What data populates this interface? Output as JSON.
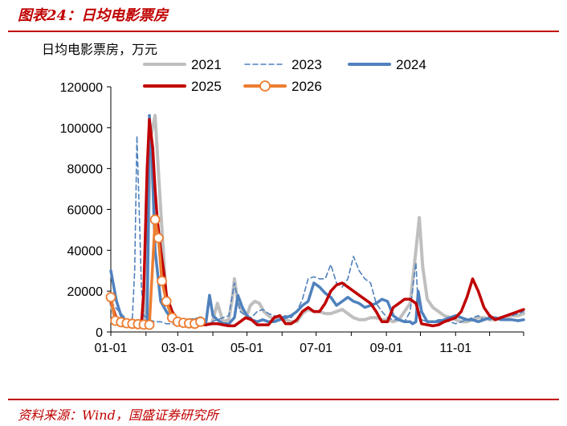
{
  "figure": {
    "title": "图表24：日均电影票房",
    "source": "资料来源：Wind，国盛证券研究所"
  },
  "chart_data": {
    "type": "line",
    "ylabel": "日均电影票房，万元",
    "ylim": [
      0,
      120000
    ],
    "yticks": [
      0,
      20000,
      40000,
      60000,
      80000,
      100000,
      120000
    ],
    "xticks": [
      "01-01",
      "03-01",
      "05-01",
      "07-01",
      "09-01",
      "11-01"
    ],
    "grid": false,
    "legend_position": "top",
    "series": [
      {
        "name": "2021",
        "color": "#bfbfbf",
        "style": "solid",
        "x": [
          1,
          4,
          8,
          12,
          15,
          20,
          25,
          28,
          30,
          33,
          36,
          40,
          45,
          50,
          55,
          60,
          65,
          70,
          75,
          80,
          85,
          90,
          95,
          100,
          105,
          108,
          110,
          113,
          117,
          121,
          124,
          128,
          132,
          136,
          140,
          145,
          150,
          155,
          160,
          165,
          170,
          175,
          180,
          185,
          190,
          195,
          200,
          205,
          210,
          215,
          220,
          225,
          230,
          235,
          240,
          245,
          250,
          255,
          260,
          265,
          270,
          273,
          276,
          280,
          285,
          290,
          295,
          300,
          305,
          310,
          315,
          320,
          325,
          330,
          335,
          340,
          345,
          350,
          355,
          360,
          365
        ],
        "y": [
          14000,
          8000,
          4000,
          3000,
          3000,
          3500,
          4000,
          4000,
          6000,
          20000,
          95000,
          106000,
          60000,
          15000,
          7000,
          6000,
          5000,
          4000,
          4000,
          5000,
          4000,
          4000,
          14000,
          5000,
          6000,
          16000,
          26000,
          14000,
          10000,
          8000,
          13000,
          15000,
          14000,
          10000,
          8000,
          6000,
          7000,
          6000,
          5000,
          5000,
          9000,
          11000,
          10000,
          10000,
          9000,
          9000,
          10000,
          11000,
          9000,
          7000,
          6000,
          6000,
          7000,
          7000,
          6000,
          6000,
          5000,
          6000,
          10000,
          14000,
          40000,
          56000,
          32000,
          16000,
          12000,
          10000,
          8000,
          7000,
          6000,
          5000,
          5000,
          6000,
          7000,
          7000,
          6000,
          6000,
          7000,
          7000,
          8000,
          8000,
          9000
        ]
      },
      {
        "name": "2023",
        "color": "#4f81bd",
        "style": "dashed",
        "x": [
          1,
          5,
          10,
          15,
          18,
          20,
          22,
          24,
          26,
          28,
          30,
          35,
          40,
          45,
          50,
          55,
          60,
          65,
          70,
          75,
          80,
          85,
          90,
          95,
          100,
          105,
          110,
          115,
          120,
          125,
          130,
          135,
          140,
          145,
          150,
          155,
          160,
          165,
          170,
          175,
          180,
          185,
          190,
          195,
          200,
          205,
          210,
          215,
          220,
          225,
          230,
          235,
          240,
          245,
          250,
          255,
          260,
          265,
          268,
          270,
          272,
          275,
          280,
          285,
          290,
          295,
          300,
          305,
          310,
          315,
          320,
          325,
          330,
          335,
          340,
          345,
          350,
          355,
          360,
          365
        ],
        "y": [
          15000,
          12000,
          9000,
          6000,
          5000,
          7000,
          30000,
          96000,
          60000,
          22000,
          8000,
          6000,
          5000,
          5000,
          4000,
          4000,
          3500,
          3500,
          3500,
          4000,
          3500,
          3500,
          5000,
          6000,
          7000,
          8000,
          24000,
          10000,
          8000,
          7000,
          10000,
          11000,
          9000,
          8000,
          7000,
          8000,
          7000,
          10000,
          16000,
          26000,
          27000,
          26000,
          26000,
          33000,
          24000,
          22000,
          26000,
          37000,
          30000,
          26000,
          24000,
          14000,
          10000,
          7000,
          6000,
          6000,
          5000,
          10000,
          25000,
          34000,
          12000,
          6000,
          5000,
          5000,
          6000,
          6000,
          5000,
          4000,
          5000,
          6000,
          7000,
          8000,
          6000,
          6000,
          7000,
          7000,
          8000,
          8000,
          9000,
          10000
        ]
      },
      {
        "name": "2024",
        "color": "#4f81bd",
        "style": "solid",
        "x": [
          1,
          6,
          10,
          15,
          20,
          25,
          30,
          33,
          35,
          37,
          40,
          45,
          50,
          55,
          60,
          65,
          70,
          75,
          80,
          85,
          88,
          91,
          95,
          100,
          105,
          110,
          113,
          117,
          121,
          125,
          130,
          135,
          140,
          145,
          150,
          155,
          160,
          165,
          170,
          175,
          180,
          185,
          190,
          195,
          200,
          205,
          210,
          215,
          220,
          225,
          230,
          235,
          240,
          245,
          250,
          255,
          260,
          265,
          267,
          270,
          272,
          275,
          280,
          285,
          290,
          295,
          300,
          305,
          310,
          315,
          320,
          325,
          330,
          335,
          340,
          345,
          350,
          355,
          360,
          365
        ],
        "y": [
          30000,
          15000,
          8000,
          5000,
          4000,
          4000,
          4000,
          4000,
          106000,
          90000,
          40000,
          15000,
          10000,
          6000,
          5000,
          5000,
          6000,
          6000,
          7000,
          5000,
          18000,
          8000,
          6000,
          4000,
          4000,
          7000,
          18000,
          12000,
          8000,
          6000,
          5000,
          6000,
          5000,
          5000,
          6000,
          7000,
          8000,
          10000,
          13000,
          15000,
          24000,
          22000,
          19000,
          17000,
          13000,
          15000,
          17000,
          15000,
          14000,
          12000,
          13000,
          14000,
          16000,
          15000,
          8000,
          6000,
          5000,
          5000,
          4000,
          5000,
          20000,
          10000,
          5000,
          5000,
          5000,
          6000,
          7000,
          8000,
          7000,
          6000,
          6000,
          5000,
          6000,
          7000,
          7000,
          6000,
          6000,
          6000,
          5500,
          6000
        ]
      },
      {
        "name": "2025",
        "color": "#c00000",
        "style": "solid",
        "x": [
          1,
          5,
          10,
          15,
          20,
          25,
          28,
          30,
          33,
          35,
          38,
          40,
          42,
          45,
          48,
          50,
          55,
          60,
          65,
          70,
          75,
          80,
          85,
          90,
          95,
          100,
          105,
          110,
          115,
          120,
          125,
          130,
          135,
          140,
          145,
          150,
          155,
          160,
          165,
          170,
          175,
          180,
          185,
          190,
          195,
          200,
          205,
          210,
          215,
          220,
          225,
          230,
          235,
          240,
          245,
          250,
          255,
          260,
          265,
          270,
          275,
          280,
          285,
          290,
          295,
          300,
          305,
          310,
          315,
          320,
          325,
          330,
          335,
          340,
          345,
          350,
          355,
          360,
          365
        ],
        "y": [
          15000,
          8000,
          4000,
          3500,
          3500,
          3500,
          3500,
          20000,
          80000,
          104000,
          90000,
          70000,
          55000,
          40000,
          28000,
          18000,
          10000,
          6000,
          4000,
          4000,
          3500,
          3500,
          3500,
          4000,
          4000,
          3500,
          3000,
          3000,
          5000,
          7000,
          6000,
          3500,
          3500,
          3500,
          7000,
          8000,
          4000,
          4000,
          6000,
          10000,
          12000,
          10000,
          10000,
          14000,
          20000,
          23000,
          24000,
          22000,
          20000,
          18000,
          16000,
          14000,
          10000,
          5000,
          5000,
          12000,
          14000,
          16000,
          16000,
          14000,
          4000,
          3500,
          3000,
          3500,
          5000,
          6000,
          7000,
          10000,
          17000,
          26000,
          20000,
          12000,
          8000,
          6000,
          7000,
          8000,
          9000,
          10000,
          11000
        ]
      },
      {
        "name": "2026",
        "color": "#ed7d31",
        "style": "solid-marker",
        "x": [
          1,
          5,
          10,
          15,
          20,
          25,
          30,
          35,
          40,
          43,
          46,
          50,
          55,
          60,
          65,
          70,
          75,
          80
        ],
        "y": [
          17000,
          5500,
          4800,
          4300,
          4000,
          3800,
          3600,
          3500,
          55000,
          46000,
          25000,
          15000,
          7000,
          5000,
          4500,
          4200,
          4000,
          5000
        ]
      }
    ]
  }
}
